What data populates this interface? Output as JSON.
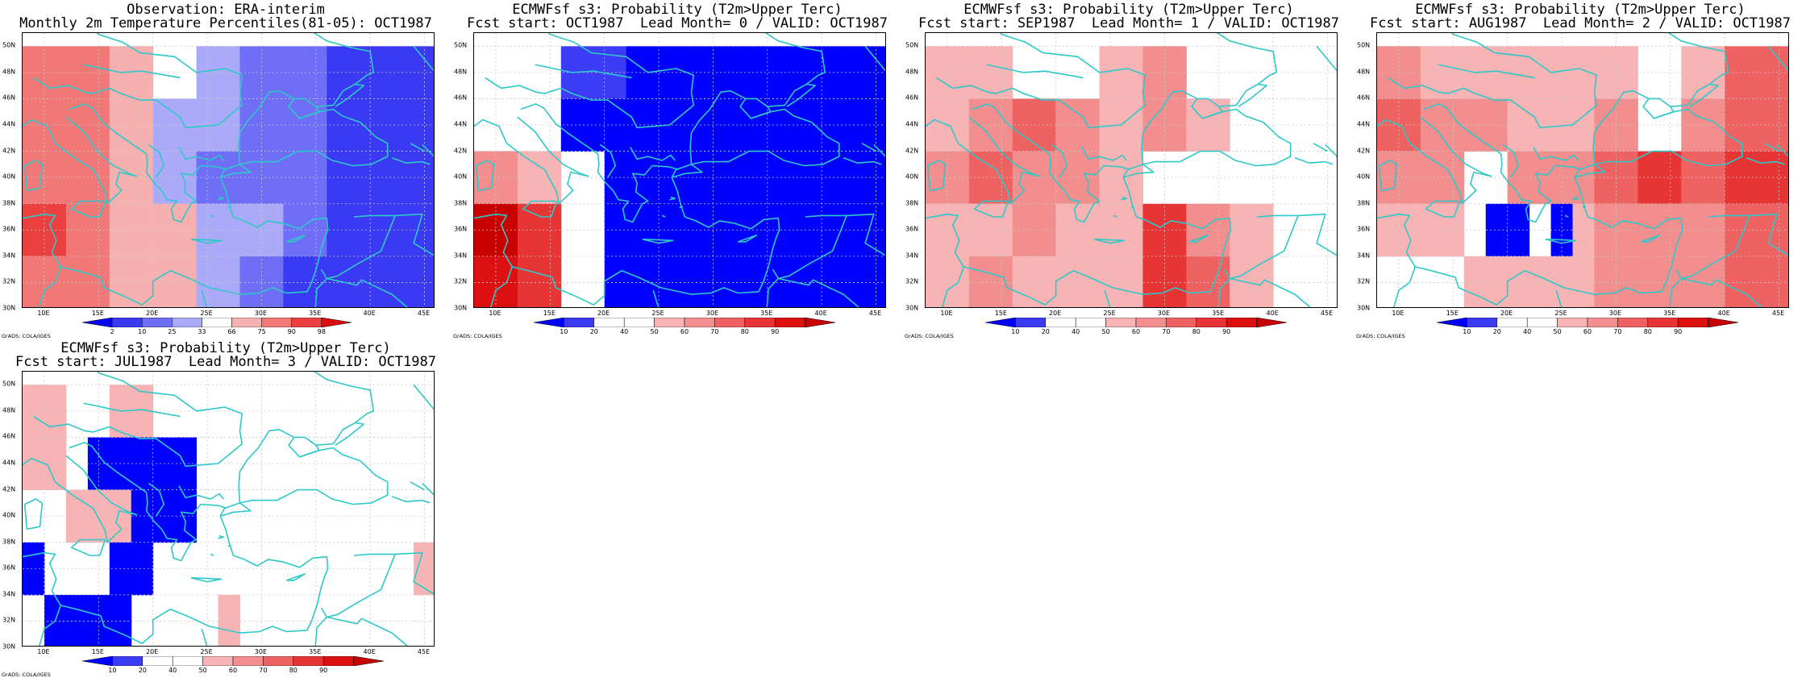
{
  "map_extent": {
    "lon": [
      8,
      46
    ],
    "lat": [
      30,
      51
    ]
  },
  "lat_ticks": [
    {
      "value": 50,
      "label": "50N"
    },
    {
      "value": 48,
      "label": "48N"
    },
    {
      "value": 46,
      "label": "46N"
    },
    {
      "value": 44,
      "label": "44N"
    },
    {
      "value": 42,
      "label": "42N"
    },
    {
      "value": 40,
      "label": "40N"
    },
    {
      "value": 38,
      "label": "38N"
    },
    {
      "value": 36,
      "label": "36N"
    },
    {
      "value": 34,
      "label": "34N"
    },
    {
      "value": 32,
      "label": "32N"
    },
    {
      "value": 30,
      "label": "30N"
    }
  ],
  "lon_ticks": [
    {
      "value": 10,
      "label": "10E"
    },
    {
      "value": 15,
      "label": "15E"
    },
    {
      "value": 20,
      "label": "20E"
    },
    {
      "value": 25,
      "label": "25E"
    },
    {
      "value": 30,
      "label": "30E"
    },
    {
      "value": 35,
      "label": "35E"
    },
    {
      "value": 40,
      "label": "40E"
    },
    {
      "value": 45,
      "label": "45E"
    }
  ],
  "credit": "GrADS: COLA/IGES",
  "colors": {
    "coast": "#2ec8c8",
    "grid": "#c8c8c8",
    "obs_bins": [
      "#0a0af0",
      "#3a3af4",
      "#6e6ef6",
      "#aaaaf8",
      "#ffffff",
      "#f7b0b0",
      "#f27878",
      "#ea4040",
      "#dc0c0c"
    ],
    "prob_bins": [
      "#0000ff",
      "#3c3cf6",
      "#ffffff",
      "#ffffff",
      "#f8b4b4",
      "#f28e8e",
      "#ee6262",
      "#e73434",
      "#dc1010",
      "#c80000"
    ]
  },
  "colorbar_obs": [
    "2",
    "10",
    "25",
    "33",
    "66",
    "75",
    "90",
    "98"
  ],
  "colorbar_prob": [
    "10",
    "20",
    "40",
    "50",
    "60",
    "70",
    "80",
    "90"
  ],
  "panels": [
    {
      "id": "obs",
      "title1": "Observation: ERA-interim",
      "title2": "Monthly 2m Temperature Percentiles(81-05): OCT1987",
      "bar": "obs",
      "cells": [
        [
          8,
          50,
          12,
          6
        ],
        [
          12,
          50,
          16,
          6
        ],
        [
          16,
          50,
          20,
          5
        ],
        [
          20,
          50,
          24,
          4
        ],
        [
          24,
          50,
          28,
          3
        ],
        [
          28,
          50,
          32,
          2
        ],
        [
          32,
          50,
          36,
          2
        ],
        [
          36,
          50,
          46,
          1
        ],
        [
          8,
          46,
          12,
          6
        ],
        [
          12,
          46,
          16,
          6
        ],
        [
          16,
          46,
          20,
          5
        ],
        [
          20,
          46,
          24,
          3
        ],
        [
          24,
          46,
          28,
          3
        ],
        [
          28,
          46,
          32,
          2
        ],
        [
          32,
          46,
          36,
          2
        ],
        [
          36,
          46,
          46,
          1
        ],
        [
          8,
          42,
          12,
          6
        ],
        [
          12,
          42,
          16,
          6
        ],
        [
          16,
          42,
          20,
          5
        ],
        [
          20,
          42,
          24,
          3
        ],
        [
          24,
          42,
          28,
          2
        ],
        [
          28,
          42,
          32,
          2
        ],
        [
          32,
          42,
          36,
          2
        ],
        [
          36,
          42,
          46,
          1
        ],
        [
          8,
          38,
          12,
          7
        ],
        [
          12,
          38,
          16,
          6
        ],
        [
          16,
          38,
          20,
          5
        ],
        [
          20,
          38,
          24,
          5
        ],
        [
          24,
          38,
          28,
          3
        ],
        [
          28,
          38,
          32,
          3
        ],
        [
          32,
          38,
          36,
          2
        ],
        [
          36,
          38,
          46,
          1
        ],
        [
          8,
          34,
          12,
          6
        ],
        [
          12,
          34,
          16,
          6
        ],
        [
          16,
          34,
          20,
          5
        ],
        [
          20,
          34,
          24,
          5
        ],
        [
          24,
          34,
          28,
          3
        ],
        [
          28,
          34,
          32,
          2
        ],
        [
          32,
          34,
          36,
          1
        ],
        [
          36,
          34,
          46,
          1
        ],
        [
          8,
          30,
          12,
          5
        ],
        [
          12,
          30,
          16,
          5
        ],
        [
          16,
          30,
          20,
          4
        ],
        [
          20,
          30,
          24,
          4
        ],
        [
          24,
          30,
          28,
          3
        ],
        [
          28,
          30,
          32,
          2
        ],
        [
          32,
          30,
          36,
          1
        ],
        [
          36,
          30,
          46,
          1
        ]
      ]
    },
    {
      "id": "lead0",
      "title1": "ECMWFsf s3: Probability (T2m>Upper Terc)",
      "title2": "Fcst start: OCT1987  Lead Month= 0 / VALID: OCT1987",
      "bar": "prob",
      "cells": [
        [
          8,
          50,
          12,
          2
        ],
        [
          12,
          50,
          16,
          2
        ],
        [
          16,
          50,
          22,
          1
        ],
        [
          22,
          50,
          46,
          0
        ],
        [
          8,
          46,
          12,
          2
        ],
        [
          12,
          46,
          16,
          2
        ],
        [
          16,
          46,
          22,
          0
        ],
        [
          22,
          46,
          46,
          0
        ],
        [
          8,
          42,
          12,
          5
        ],
        [
          12,
          42,
          16,
          4
        ],
        [
          16,
          42,
          20,
          2
        ],
        [
          20,
          42,
          46,
          0
        ],
        [
          8,
          38,
          12,
          9
        ],
        [
          12,
          38,
          16,
          7
        ],
        [
          16,
          38,
          20,
          2
        ],
        [
          20,
          38,
          46,
          0
        ],
        [
          8,
          34,
          12,
          8
        ],
        [
          12,
          34,
          16,
          7
        ],
        [
          16,
          34,
          20,
          2
        ],
        [
          20,
          34,
          46,
          0
        ],
        [
          8,
          30,
          12,
          9
        ],
        [
          12,
          30,
          16,
          8
        ],
        [
          16,
          30,
          20,
          2
        ],
        [
          20,
          30,
          46,
          0
        ]
      ]
    },
    {
      "id": "lead1",
      "title1": "ECMWFsf s3: Probability (T2m>Upper Terc)",
      "title2": "Fcst start: SEP1987  Lead Month= 1 / VALID: OCT1987",
      "bar": "prob",
      "cells": [
        [
          8,
          50,
          16,
          4
        ],
        [
          16,
          50,
          24,
          2
        ],
        [
          24,
          50,
          28,
          4
        ],
        [
          28,
          50,
          32,
          5
        ],
        [
          32,
          50,
          34,
          2
        ],
        [
          34,
          50,
          46,
          2
        ],
        [
          8,
          46,
          12,
          4
        ],
        [
          12,
          46,
          16,
          5
        ],
        [
          16,
          46,
          20,
          6
        ],
        [
          20,
          46,
          24,
          5
        ],
        [
          24,
          46,
          28,
          4
        ],
        [
          28,
          46,
          32,
          5
        ],
        [
          32,
          46,
          36,
          4
        ],
        [
          36,
          46,
          40,
          2
        ],
        [
          40,
          46,
          46,
          2
        ],
        [
          8,
          42,
          12,
          5
        ],
        [
          12,
          42,
          16,
          6
        ],
        [
          16,
          42,
          20,
          5
        ],
        [
          20,
          42,
          24,
          5
        ],
        [
          24,
          42,
          28,
          4
        ],
        [
          28,
          42,
          32,
          2
        ],
        [
          32,
          42,
          36,
          2
        ],
        [
          36,
          42,
          46,
          2
        ],
        [
          8,
          38,
          12,
          4
        ],
        [
          12,
          38,
          16,
          4
        ],
        [
          16,
          38,
          20,
          5
        ],
        [
          20,
          38,
          24,
          4
        ],
        [
          24,
          38,
          28,
          4
        ],
        [
          28,
          38,
          32,
          7
        ],
        [
          32,
          38,
          36,
          5
        ],
        [
          36,
          38,
          40,
          4
        ],
        [
          40,
          38,
          46,
          2
        ],
        [
          8,
          34,
          12,
          4
        ],
        [
          12,
          34,
          16,
          5
        ],
        [
          16,
          34,
          20,
          4
        ],
        [
          20,
          34,
          24,
          4
        ],
        [
          24,
          34,
          28,
          4
        ],
        [
          28,
          34,
          32,
          7
        ],
        [
          32,
          34,
          36,
          6
        ],
        [
          36,
          34,
          40,
          4
        ],
        [
          40,
          34,
          46,
          2
        ],
        [
          8,
          30,
          12,
          4
        ],
        [
          12,
          30,
          16,
          2
        ],
        [
          16,
          30,
          20,
          4
        ],
        [
          20,
          30,
          24,
          4
        ],
        [
          24,
          30,
          28,
          2
        ],
        [
          28,
          30,
          32,
          5
        ],
        [
          32,
          30,
          36,
          5
        ],
        [
          36,
          30,
          40,
          4
        ],
        [
          40,
          30,
          46,
          2
        ]
      ]
    },
    {
      "id": "lead2",
      "title1": "ECMWFsf s3: Probability (T2m>Upper Terc)",
      "title2": "Fcst start: AUG1987  Lead Month= 2 / VALID: OCT1987",
      "bar": "prob",
      "cells": [
        [
          8,
          50,
          12,
          5
        ],
        [
          12,
          50,
          16,
          4
        ],
        [
          16,
          50,
          20,
          4
        ],
        [
          20,
          50,
          24,
          4
        ],
        [
          24,
          50,
          28,
          4
        ],
        [
          28,
          50,
          32,
          4
        ],
        [
          32,
          50,
          36,
          2
        ],
        [
          36,
          50,
          40,
          4
        ],
        [
          40,
          50,
          46,
          6
        ],
        [
          8,
          46,
          12,
          6
        ],
        [
          12,
          46,
          16,
          5
        ],
        [
          16,
          46,
          20,
          5
        ],
        [
          20,
          46,
          24,
          4
        ],
        [
          24,
          46,
          28,
          4
        ],
        [
          28,
          46,
          32,
          5
        ],
        [
          32,
          46,
          36,
          2
        ],
        [
          36,
          46,
          40,
          5
        ],
        [
          40,
          46,
          46,
          6
        ],
        [
          8,
          42,
          12,
          5
        ],
        [
          12,
          42,
          16,
          5
        ],
        [
          16,
          42,
          20,
          2
        ],
        [
          20,
          42,
          24,
          5
        ],
        [
          24,
          42,
          28,
          5
        ],
        [
          28,
          42,
          32,
          6
        ],
        [
          32,
          42,
          36,
          7
        ],
        [
          36,
          42,
          40,
          6
        ],
        [
          40,
          42,
          46,
          7
        ],
        [
          8,
          38,
          12,
          4
        ],
        [
          12,
          38,
          16,
          4
        ],
        [
          16,
          38,
          18,
          2
        ],
        [
          18,
          38,
          22,
          0
        ],
        [
          22,
          38,
          24,
          2
        ],
        [
          24,
          38,
          26,
          0
        ],
        [
          26,
          38,
          28,
          4
        ],
        [
          28,
          38,
          32,
          5
        ],
        [
          32,
          38,
          36,
          5
        ],
        [
          36,
          38,
          40,
          5
        ],
        [
          40,
          38,
          46,
          6
        ],
        [
          8,
          34,
          12,
          2
        ],
        [
          12,
          34,
          16,
          2
        ],
        [
          16,
          34,
          20,
          4
        ],
        [
          20,
          34,
          24,
          4
        ],
        [
          24,
          34,
          28,
          4
        ],
        [
          28,
          34,
          32,
          5
        ],
        [
          32,
          34,
          36,
          5
        ],
        [
          36,
          34,
          40,
          5
        ],
        [
          40,
          34,
          46,
          6
        ],
        [
          8,
          30,
          12,
          2
        ],
        [
          12,
          30,
          16,
          2
        ],
        [
          16,
          30,
          20,
          2
        ],
        [
          20,
          30,
          24,
          2
        ],
        [
          24,
          30,
          28,
          2
        ],
        [
          28,
          30,
          32,
          4
        ],
        [
          32,
          30,
          36,
          5
        ],
        [
          36,
          30,
          40,
          5
        ],
        [
          40,
          30,
          46,
          5
        ]
      ]
    },
    {
      "id": "lead3",
      "title1": "ECMWFsf s3: Probability (T2m>Upper Terc)",
      "title2": "Fcst start: JUL1987  Lead Month= 3 / VALID: OCT1987",
      "bar": "prob",
      "cells": [
        [
          8,
          50,
          12,
          4
        ],
        [
          12,
          50,
          16,
          2
        ],
        [
          16,
          50,
          20,
          4
        ],
        [
          20,
          50,
          46,
          2
        ],
        [
          8,
          46,
          12,
          4
        ],
        [
          12,
          46,
          14,
          2
        ],
        [
          14,
          46,
          24,
          0
        ],
        [
          24,
          46,
          46,
          2
        ],
        [
          8,
          42,
          12,
          2
        ],
        [
          12,
          42,
          18,
          4
        ],
        [
          18,
          42,
          24,
          0
        ],
        [
          24,
          42,
          46,
          2
        ],
        [
          8,
          38,
          10,
          0
        ],
        [
          10,
          38,
          16,
          2
        ],
        [
          16,
          38,
          20,
          0
        ],
        [
          20,
          38,
          44,
          2
        ],
        [
          44,
          38,
          46,
          4
        ],
        [
          8,
          34,
          10,
          2
        ],
        [
          10,
          34,
          18,
          0
        ],
        [
          18,
          34,
          26,
          2
        ],
        [
          26,
          34,
          28,
          4
        ],
        [
          28,
          34,
          46,
          2
        ],
        [
          8,
          30,
          10,
          2
        ],
        [
          10,
          30,
          16,
          0
        ],
        [
          16,
          30,
          24,
          2
        ],
        [
          24,
          30,
          26,
          4
        ],
        [
          26,
          30,
          46,
          2
        ]
      ]
    }
  ]
}
